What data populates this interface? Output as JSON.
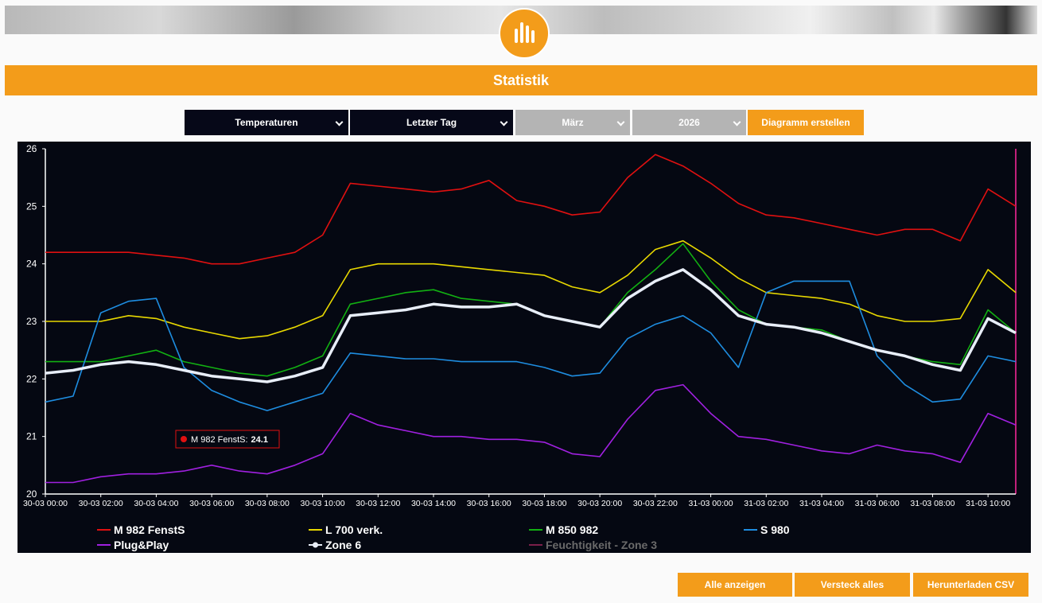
{
  "header": {
    "title": "Statistik"
  },
  "controls": {
    "selects": [
      "Temperaturen",
      "Letzter Tag",
      "März",
      "2026"
    ],
    "button": "Diagramm erstellen"
  },
  "chart_data": {
    "type": "line",
    "x": [
      0,
      1,
      2,
      3,
      4,
      5,
      6,
      7,
      8,
      9,
      10,
      11,
      12,
      13,
      14,
      15,
      16,
      17,
      18,
      19,
      20,
      21,
      22,
      23,
      24,
      25,
      26,
      27,
      28,
      29,
      30,
      31,
      32,
      33,
      34,
      35
    ],
    "xlim": [
      0,
      35
    ],
    "xticks": [
      {
        "value": 0,
        "label": "30-03 00:00"
      },
      {
        "value": 2,
        "label": "30-03 02:00"
      },
      {
        "value": 4,
        "label": "30-03 04:00"
      },
      {
        "value": 6,
        "label": "30-03 06:00"
      },
      {
        "value": 8,
        "label": "30-03 08:00"
      },
      {
        "value": 10,
        "label": "30-03 10:00"
      },
      {
        "value": 12,
        "label": "30-03 12:00"
      },
      {
        "value": 14,
        "label": "30-03 14:00"
      },
      {
        "value": 16,
        "label": "30-03 16:00"
      },
      {
        "value": 18,
        "label": "30-03 18:00"
      },
      {
        "value": 20,
        "label": "30-03 20:00"
      },
      {
        "value": 22,
        "label": "30-03 22:00"
      },
      {
        "value": 24,
        "label": "31-03 00:00"
      },
      {
        "value": 26,
        "label": "31-03 02:00"
      },
      {
        "value": 28,
        "label": "31-03 04:00"
      },
      {
        "value": 30,
        "label": "31-03 06:00"
      },
      {
        "value": 32,
        "label": "31-03 08:00"
      },
      {
        "value": 34,
        "label": "31-03 10:00"
      }
    ],
    "ylim": [
      20,
      26
    ],
    "yticks": [
      20,
      21,
      22,
      23,
      24,
      25,
      26
    ],
    "series": [
      {
        "name": "M 982 FenstS",
        "color": "#e01010",
        "values": [
          24.2,
          24.2,
          24.2,
          24.2,
          24.15,
          24.1,
          24.0,
          24.0,
          24.1,
          24.2,
          24.5,
          25.4,
          25.35,
          25.3,
          25.25,
          25.3,
          25.45,
          25.1,
          25.0,
          24.85,
          24.9,
          25.5,
          25.9,
          25.7,
          25.4,
          25.05,
          24.85,
          24.8,
          24.7,
          24.6,
          24.5,
          24.6,
          24.6,
          24.4,
          25.3,
          25.0
        ]
      },
      {
        "name": "L 700 verk.",
        "color": "#e8d800",
        "values": [
          23.0,
          23.0,
          23.0,
          23.1,
          23.05,
          22.9,
          22.8,
          22.7,
          22.75,
          22.9,
          23.1,
          23.9,
          24.0,
          24.0,
          24.0,
          23.95,
          23.9,
          23.85,
          23.8,
          23.6,
          23.5,
          23.8,
          24.25,
          24.4,
          24.1,
          23.75,
          23.5,
          23.45,
          23.4,
          23.3,
          23.1,
          23.0,
          23.0,
          23.05,
          23.9,
          23.5
        ]
      },
      {
        "name": "M 850 982",
        "color": "#12b012",
        "values": [
          22.3,
          22.3,
          22.3,
          22.4,
          22.5,
          22.3,
          22.2,
          22.1,
          22.05,
          22.2,
          22.4,
          23.3,
          23.4,
          23.5,
          23.55,
          23.4,
          23.35,
          23.3,
          23.1,
          23.0,
          22.9,
          23.5,
          23.9,
          24.35,
          23.7,
          23.2,
          22.95,
          22.9,
          22.85,
          22.65,
          22.5,
          22.4,
          22.3,
          22.25,
          23.2,
          22.8
        ]
      },
      {
        "name": "S 980",
        "color": "#1e8de0",
        "values": [
          21.6,
          21.7,
          23.15,
          23.35,
          23.4,
          22.2,
          21.8,
          21.6,
          21.45,
          21.6,
          21.75,
          22.45,
          22.4,
          22.35,
          22.35,
          22.3,
          22.3,
          22.3,
          22.2,
          22.05,
          22.1,
          22.7,
          22.95,
          23.1,
          22.8,
          22.2,
          23.5,
          23.7,
          23.7,
          23.7,
          22.4,
          21.9,
          21.6,
          21.65,
          22.4,
          22.3
        ]
      },
      {
        "name": "Plug&Play",
        "color": "#a020e0",
        "values": [
          20.2,
          20.2,
          20.3,
          20.35,
          20.35,
          20.4,
          20.5,
          20.4,
          20.35,
          20.5,
          20.7,
          21.4,
          21.2,
          21.1,
          21.0,
          21.0,
          20.95,
          20.95,
          20.9,
          20.7,
          20.65,
          21.3,
          21.8,
          21.9,
          21.4,
          21.0,
          20.95,
          20.85,
          20.75,
          20.7,
          20.85,
          20.75,
          20.7,
          20.55,
          21.4,
          21.2
        ]
      },
      {
        "name": "Zone 6",
        "color": "#e8eef8",
        "marker": true,
        "values": [
          22.1,
          22.15,
          22.25,
          22.3,
          22.25,
          22.15,
          22.05,
          22.0,
          21.95,
          22.05,
          22.2,
          23.1,
          23.15,
          23.2,
          23.3,
          23.25,
          23.25,
          23.3,
          23.1,
          23.0,
          22.9,
          23.4,
          23.7,
          23.9,
          23.55,
          23.1,
          22.95,
          22.9,
          22.8,
          22.65,
          22.5,
          22.4,
          22.25,
          22.15,
          23.05,
          22.8
        ]
      },
      {
        "name": "Feuchtigkeit - Zone 3",
        "color": "#7a1f4a",
        "visible": false
      }
    ],
    "tooltip": {
      "label": "M 982 FenstS:",
      "value": 24.1
    }
  },
  "buttons": [
    "Alle anzeigen",
    "Versteck alles",
    "Herunterladen CSV"
  ]
}
